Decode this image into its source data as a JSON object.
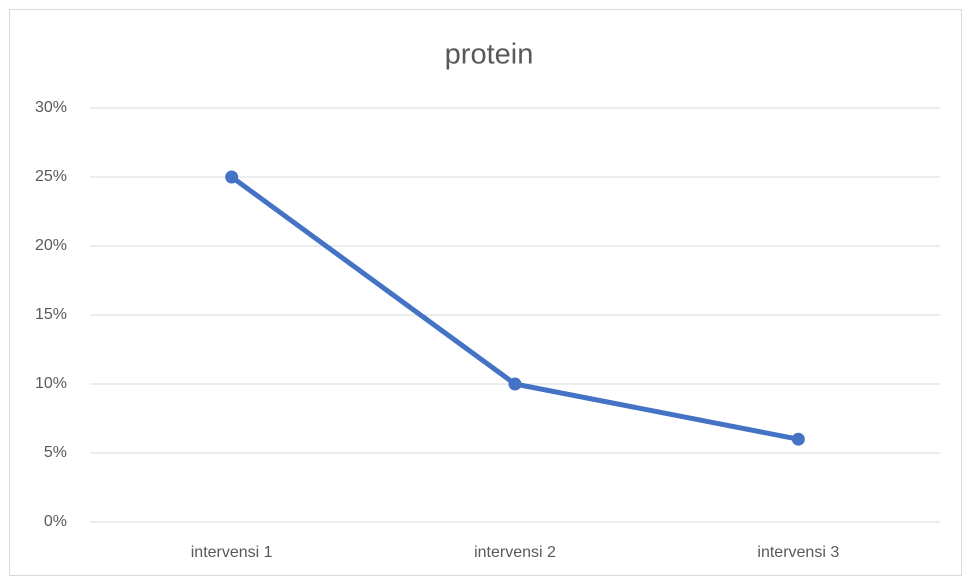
{
  "chart_data": {
    "type": "line",
    "title": "protein",
    "categories": [
      "intervensi 1",
      "intervensi 2",
      "intervensi 3"
    ],
    "values": [
      25,
      10,
      6
    ],
    "color": "#4472c4",
    "ylim": [
      0,
      30
    ],
    "yticks": [
      {
        "value": 0,
        "label": "0%"
      },
      {
        "value": 5,
        "label": "5%"
      },
      {
        "value": 10,
        "label": "10%"
      },
      {
        "value": 15,
        "label": "15%"
      },
      {
        "value": 20,
        "label": "20%"
      },
      {
        "value": 25,
        "label": "25%"
      },
      {
        "value": 30,
        "label": "30%"
      }
    ],
    "grid": true
  }
}
